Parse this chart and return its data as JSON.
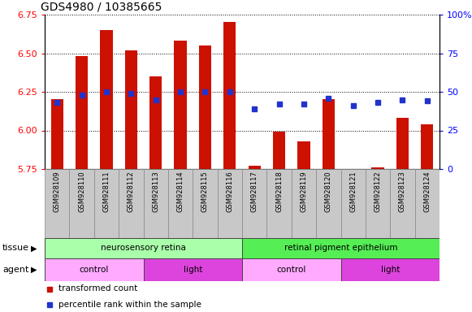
{
  "title": "GDS4980 / 10385665",
  "samples": [
    "GSM928109",
    "GSM928110",
    "GSM928111",
    "GSM928112",
    "GSM928113",
    "GSM928114",
    "GSM928115",
    "GSM928116",
    "GSM928117",
    "GSM928118",
    "GSM928119",
    "GSM928120",
    "GSM928121",
    "GSM928122",
    "GSM928123",
    "GSM928124"
  ],
  "transformed_count": [
    6.2,
    6.48,
    6.65,
    6.52,
    6.35,
    6.58,
    6.55,
    6.7,
    5.77,
    5.99,
    5.93,
    6.2,
    5.73,
    5.76,
    6.08,
    6.04
  ],
  "percentile_rank": [
    43,
    48,
    50,
    49,
    45,
    50,
    50,
    50,
    39,
    42,
    42,
    46,
    41,
    43,
    45,
    44
  ],
  "ylim_left": [
    5.75,
    6.75
  ],
  "ylim_right": [
    0,
    100
  ],
  "yticks_left": [
    5.75,
    6.0,
    6.25,
    6.5,
    6.75
  ],
  "yticks_right": [
    0,
    25,
    50,
    75,
    100
  ],
  "bar_color": "#cc1100",
  "dot_color": "#2233cc",
  "tissue_groups": [
    {
      "label": "neurosensory retina",
      "start": 0,
      "end": 8,
      "color": "#aaffaa"
    },
    {
      "label": "retinal pigment epithelium",
      "start": 8,
      "end": 16,
      "color": "#55ee55"
    }
  ],
  "agent_groups": [
    {
      "label": "control",
      "start": 0,
      "end": 4,
      "color": "#ffaaff"
    },
    {
      "label": "light",
      "start": 4,
      "end": 8,
      "color": "#dd44dd"
    },
    {
      "label": "control",
      "start": 8,
      "end": 12,
      "color": "#ffaaff"
    },
    {
      "label": "light",
      "start": 12,
      "end": 16,
      "color": "#dd44dd"
    }
  ],
  "legend_items": [
    {
      "label": "transformed count",
      "color": "#cc1100"
    },
    {
      "label": "percentile rank within the sample",
      "color": "#2233cc"
    }
  ],
  "tissue_label": "tissue",
  "agent_label": "agent",
  "bar_width": 0.5,
  "xtick_bg": "#c8c8c8",
  "grid_color": "black",
  "title_fontsize": 10,
  "tick_fontsize": 8,
  "label_fontsize": 8,
  "bar_label_fontsize": 6
}
